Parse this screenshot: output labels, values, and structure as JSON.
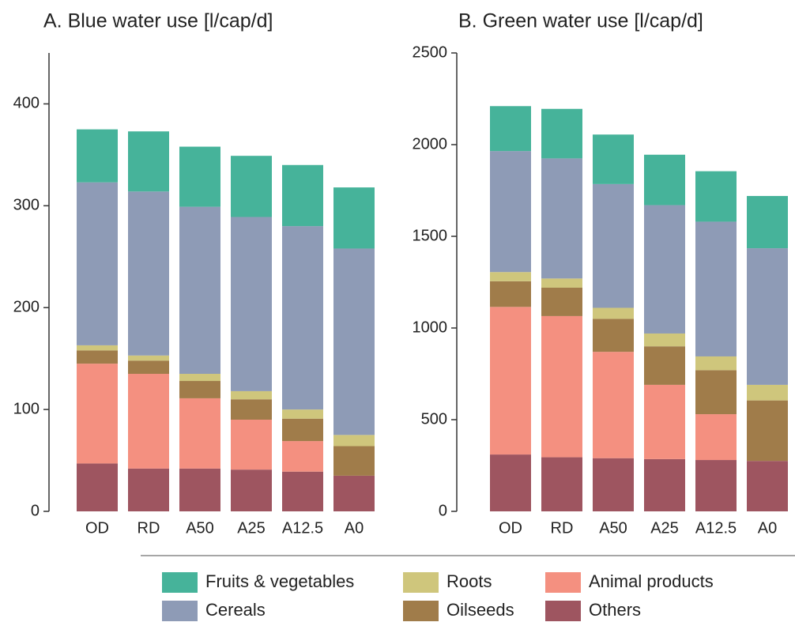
{
  "chart_data": [
    {
      "type": "bar",
      "stacked": true,
      "title": "A. Blue water use [l/cap/d]",
      "categories": [
        "OD",
        "RD",
        "A50",
        "A25",
        "A12.5",
        "A0"
      ],
      "ylim": [
        0,
        450
      ],
      "yticks": [
        0,
        100,
        200,
        300,
        400
      ],
      "series": [
        {
          "name": "Others",
          "color": "#9e5560",
          "values": [
            47,
            42,
            42,
            41,
            39,
            35
          ]
        },
        {
          "name": "Animal products",
          "color": "#f49080",
          "values": [
            98,
            93,
            69,
            49,
            30,
            0
          ]
        },
        {
          "name": "Oilseeds",
          "color": "#a07c4a",
          "values": [
            13,
            13,
            17,
            20,
            22,
            29
          ]
        },
        {
          "name": "Roots",
          "color": "#cfc67c",
          "values": [
            5,
            5,
            7,
            8,
            9,
            11
          ]
        },
        {
          "name": "Cereals",
          "color": "#8e9bb6",
          "values": [
            160,
            161,
            164,
            171,
            180,
            183
          ]
        },
        {
          "name": "Fruits & vegetables",
          "color": "#46b39a",
          "values": [
            52,
            59,
            59,
            60,
            60,
            60
          ]
        }
      ]
    },
    {
      "type": "bar",
      "stacked": true,
      "title": "B. Green water use [l/cap/d]",
      "categories": [
        "OD",
        "RD",
        "A50",
        "A25",
        "A12.5",
        "A0"
      ],
      "ylim": [
        0,
        2500
      ],
      "yticks": [
        0,
        500,
        1000,
        1500,
        2000,
        2500
      ],
      "series": [
        {
          "name": "Others",
          "color": "#9e5560",
          "values": [
            310,
            295,
            290,
            285,
            280,
            275
          ]
        },
        {
          "name": "Animal products",
          "color": "#f49080",
          "values": [
            805,
            770,
            580,
            405,
            250,
            0
          ]
        },
        {
          "name": "Oilseeds",
          "color": "#a07c4a",
          "values": [
            140,
            155,
            180,
            210,
            240,
            330
          ]
        },
        {
          "name": "Roots",
          "color": "#cfc67c",
          "values": [
            50,
            50,
            60,
            70,
            75,
            85
          ]
        },
        {
          "name": "Cereals",
          "color": "#8e9bb6",
          "values": [
            660,
            655,
            675,
            700,
            735,
            745
          ]
        },
        {
          "name": "Fruits & vegetables",
          "color": "#46b39a",
          "values": [
            245,
            270,
            270,
            275,
            275,
            285
          ]
        }
      ]
    }
  ]
}
